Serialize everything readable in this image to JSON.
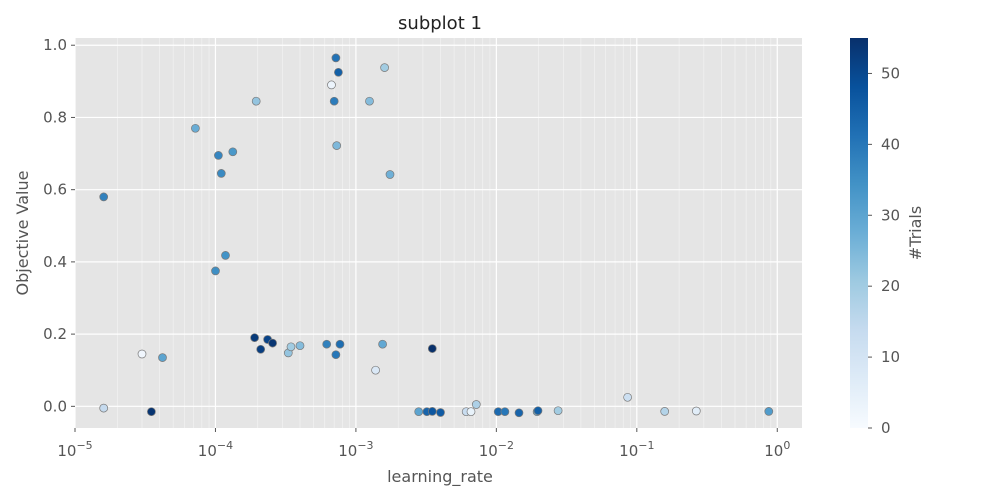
{
  "chart_data": {
    "type": "scatter",
    "title": "subplot 1",
    "xlabel": "learning_rate",
    "ylabel": "Objective Value",
    "x_scale": "log",
    "xlim": [
      1e-05,
      1.5
    ],
    "ylim": [
      -0.06,
      1.02
    ],
    "grid": true,
    "x_ticks": [
      {
        "value": 1e-05,
        "base": "10",
        "exp": "−5"
      },
      {
        "value": 0.0001,
        "base": "10",
        "exp": "−4"
      },
      {
        "value": 0.001,
        "base": "10",
        "exp": "−3"
      },
      {
        "value": 0.01,
        "base": "10",
        "exp": "−2"
      },
      {
        "value": 0.1,
        "base": "10",
        "exp": "−1"
      },
      {
        "value": 1,
        "base": "10",
        "exp": "0"
      }
    ],
    "y_ticks": [
      {
        "value": 0.0,
        "label": "0.0"
      },
      {
        "value": 0.2,
        "label": "0.2"
      },
      {
        "value": 0.4,
        "label": "0.4"
      },
      {
        "value": 0.6,
        "label": "0.6"
      },
      {
        "value": 0.8,
        "label": "0.8"
      },
      {
        "value": 1.0,
        "label": "1.0"
      }
    ],
    "colorbar": {
      "label": "#Trials",
      "colormap": "Blues",
      "range": [
        0,
        55
      ],
      "ticks": [
        {
          "value": 0,
          "label": "0"
        },
        {
          "value": 10,
          "label": "10"
        },
        {
          "value": 20,
          "label": "20"
        },
        {
          "value": 30,
          "label": "30"
        },
        {
          "value": 40,
          "label": "40"
        },
        {
          "value": 50,
          "label": "50"
        }
      ]
    },
    "points": [
      {
        "x": 1.6e-05,
        "y": 0.58,
        "trial": 38
      },
      {
        "x": 1.6e-05,
        "y": -0.005,
        "trial": 14
      },
      {
        "x": 3e-05,
        "y": 0.145,
        "trial": 2
      },
      {
        "x": 3.5e-05,
        "y": -0.015,
        "trial": 54
      },
      {
        "x": 4.2e-05,
        "y": 0.135,
        "trial": 30
      },
      {
        "x": 7.2e-05,
        "y": 0.77,
        "trial": 28
      },
      {
        "x": 0.0001,
        "y": 0.375,
        "trial": 35
      },
      {
        "x": 0.000105,
        "y": 0.695,
        "trial": 37
      },
      {
        "x": 0.00011,
        "y": 0.645,
        "trial": 36
      },
      {
        "x": 0.000118,
        "y": 0.418,
        "trial": 34
      },
      {
        "x": 0.000133,
        "y": 0.705,
        "trial": 33
      },
      {
        "x": 0.000195,
        "y": 0.845,
        "trial": 22
      },
      {
        "x": 0.00019,
        "y": 0.19,
        "trial": 53
      },
      {
        "x": 0.00021,
        "y": 0.158,
        "trial": 52
      },
      {
        "x": 0.000235,
        "y": 0.185,
        "trial": 51
      },
      {
        "x": 0.000255,
        "y": 0.175,
        "trial": 54
      },
      {
        "x": 0.00033,
        "y": 0.148,
        "trial": 22
      },
      {
        "x": 0.000345,
        "y": 0.165,
        "trial": 20
      },
      {
        "x": 0.0004,
        "y": 0.168,
        "trial": 24
      },
      {
        "x": 0.00062,
        "y": 0.172,
        "trial": 38
      },
      {
        "x": 0.00067,
        "y": 0.89,
        "trial": 3
      },
      {
        "x": 0.0007,
        "y": 0.845,
        "trial": 39
      },
      {
        "x": 0.00072,
        "y": 0.965,
        "trial": 41
      },
      {
        "x": 0.00073,
        "y": 0.722,
        "trial": 25
      },
      {
        "x": 0.00072,
        "y": 0.143,
        "trial": 40
      },
      {
        "x": 0.00075,
        "y": 0.925,
        "trial": 45
      },
      {
        "x": 0.00077,
        "y": 0.172,
        "trial": 42
      },
      {
        "x": 0.00125,
        "y": 0.845,
        "trial": 24
      },
      {
        "x": 0.00138,
        "y": 0.1,
        "trial": 8
      },
      {
        "x": 0.00155,
        "y": 0.172,
        "trial": 29
      },
      {
        "x": 0.0016,
        "y": 0.938,
        "trial": 20
      },
      {
        "x": 0.00175,
        "y": 0.642,
        "trial": 27
      },
      {
        "x": 0.0028,
        "y": -0.015,
        "trial": 30
      },
      {
        "x": 0.0032,
        "y": -0.015,
        "trial": 44
      },
      {
        "x": 0.0035,
        "y": -0.014,
        "trial": 47
      },
      {
        "x": 0.0035,
        "y": 0.16,
        "trial": 55
      },
      {
        "x": 0.004,
        "y": -0.017,
        "trial": 46
      },
      {
        "x": 0.0061,
        "y": -0.015,
        "trial": 13
      },
      {
        "x": 0.0066,
        "y": -0.015,
        "trial": 4
      },
      {
        "x": 0.0072,
        "y": 0.005,
        "trial": 18
      },
      {
        "x": 0.0103,
        "y": -0.015,
        "trial": 43
      },
      {
        "x": 0.0115,
        "y": -0.015,
        "trial": 40
      },
      {
        "x": 0.0145,
        "y": -0.018,
        "trial": 44
      },
      {
        "x": 0.0195,
        "y": -0.015,
        "trial": 28
      },
      {
        "x": 0.0198,
        "y": -0.012,
        "trial": 45
      },
      {
        "x": 0.0275,
        "y": -0.012,
        "trial": 20
      },
      {
        "x": 0.086,
        "y": 0.025,
        "trial": 12
      },
      {
        "x": 0.158,
        "y": -0.014,
        "trial": 17
      },
      {
        "x": 0.265,
        "y": -0.013,
        "trial": 6
      },
      {
        "x": 0.87,
        "y": -0.014,
        "trial": 32
      }
    ]
  }
}
